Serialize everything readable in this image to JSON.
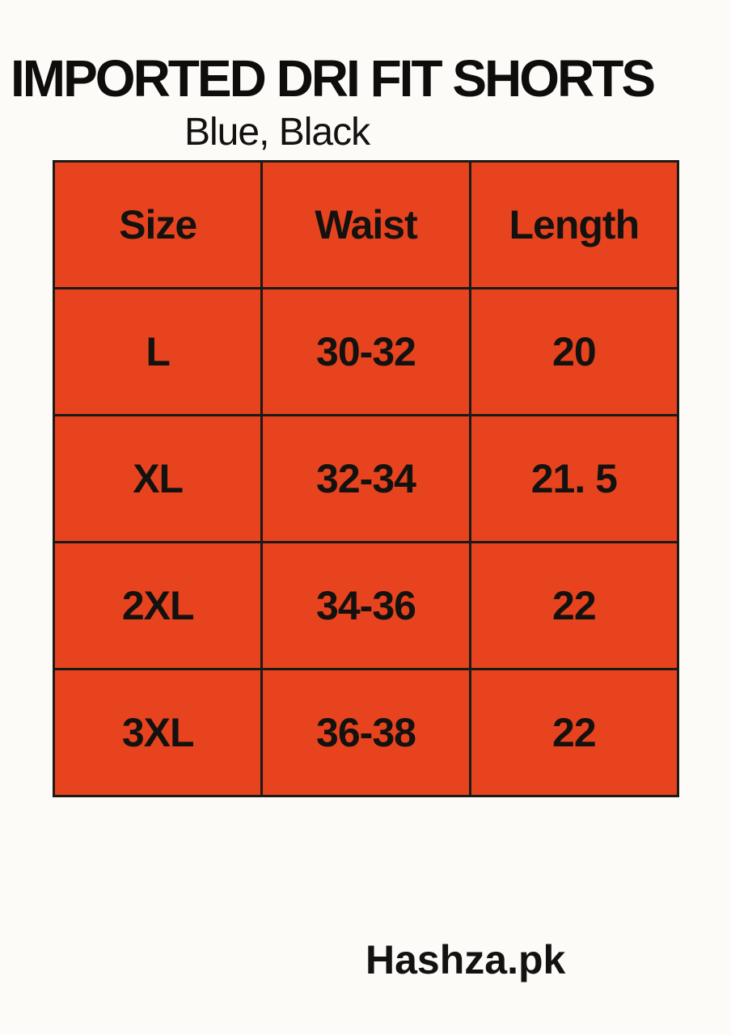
{
  "header": {
    "title": "IMPORTED DRI FIT SHORTS",
    "subtitle": "Blue, Black"
  },
  "footer": {
    "brand": "Hashza.pk"
  },
  "colors": {
    "cell_background": "#E8431F",
    "table_border": "#1A1A17",
    "text": "#14120F",
    "page_background": "#FCFBF8"
  },
  "chart_data": {
    "type": "table",
    "title": "IMPORTED DRI FIT SHORTS",
    "subtitle": "Blue, Black",
    "columns": [
      "Size",
      "Waist",
      "Length"
    ],
    "rows": [
      [
        "L",
        "30-32",
        "20"
      ],
      [
        "XL",
        "32-34",
        "21. 5"
      ],
      [
        "2XL",
        "34-36",
        "22"
      ],
      [
        "3XL",
        "36-38",
        "22"
      ]
    ],
    "legend_position": "none",
    "grid": true
  }
}
